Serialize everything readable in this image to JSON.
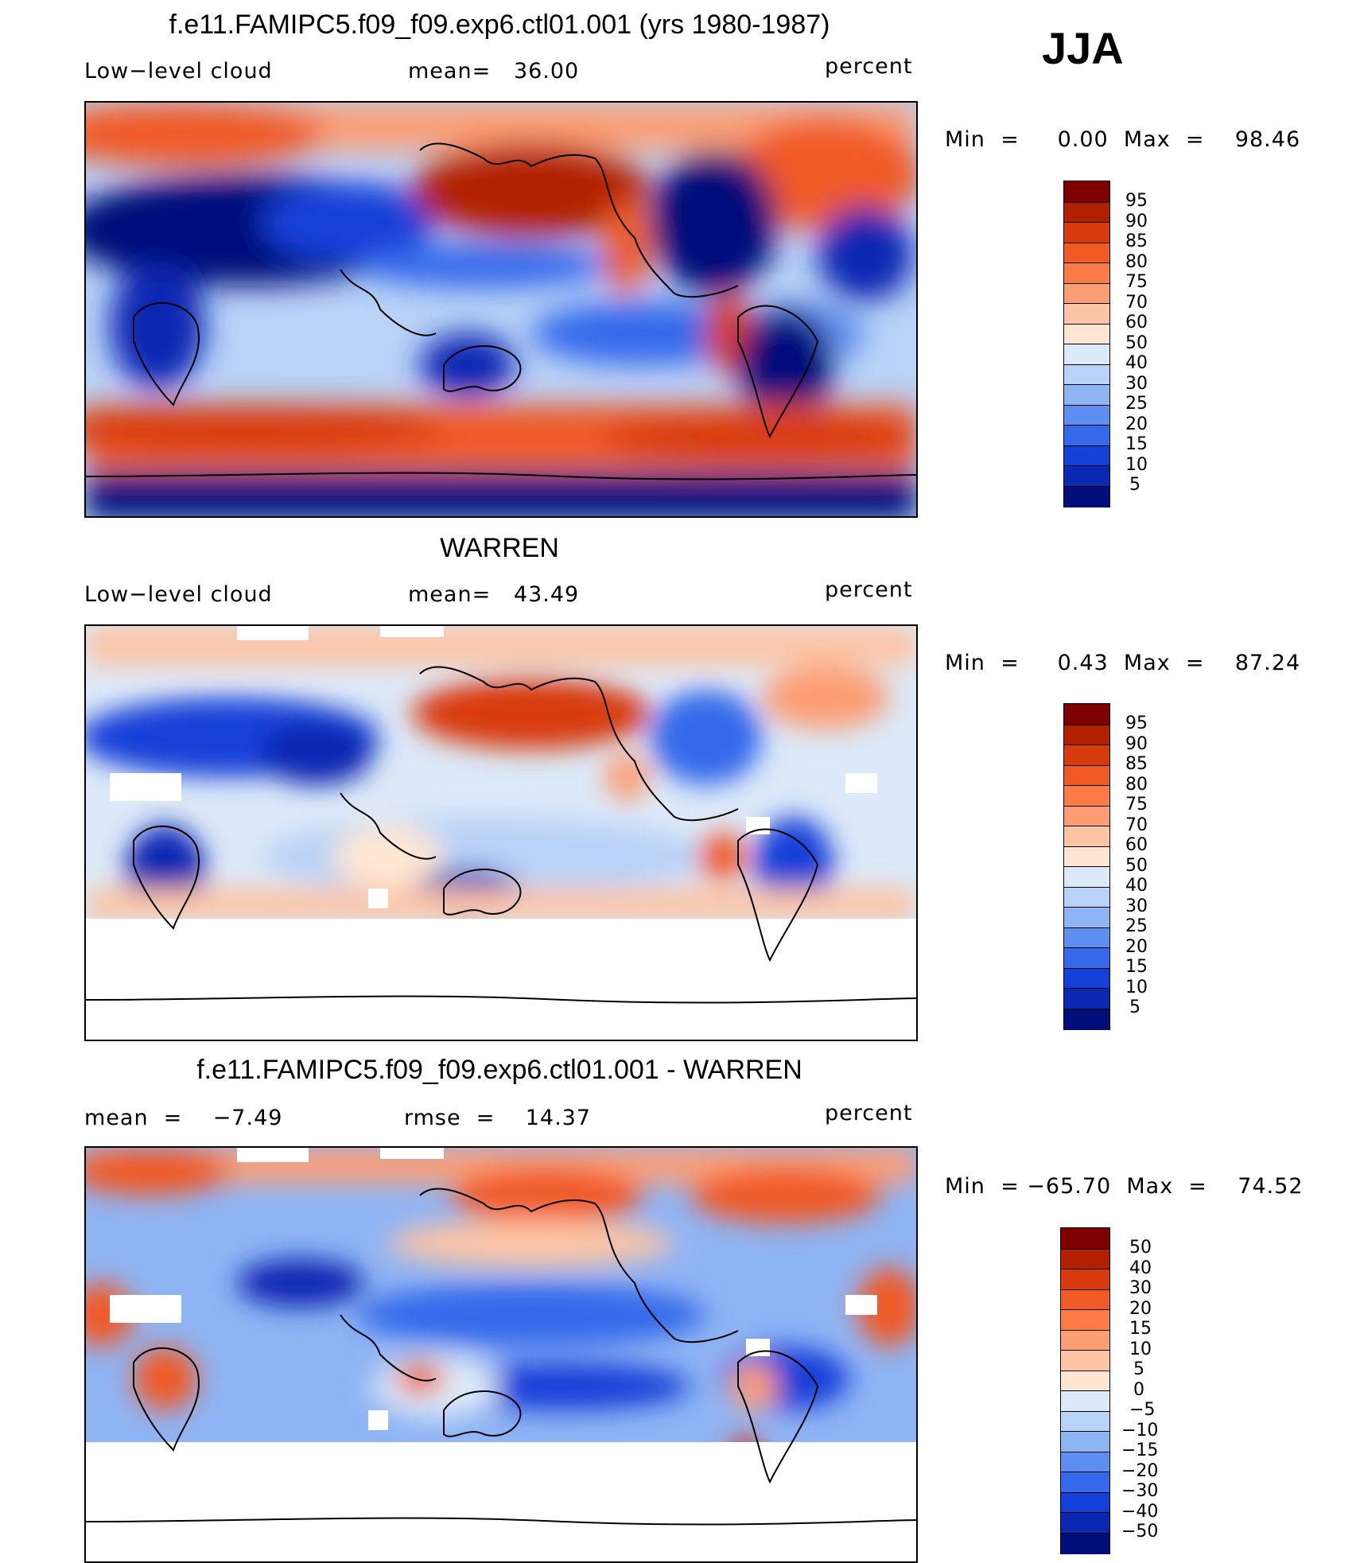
{
  "season": "JJA",
  "panels": [
    {
      "id": "model",
      "title": "f.e11.FAMIPC5.f09_f09.exp6.ctl01.001 (yrs 1980-1987)",
      "left_label": "Low−level cloud",
      "center_label": "mean=   36.00",
      "units": "percent",
      "minmax": "Min  =     0.00  Max  =    98.46",
      "colorbar_labels": [
        "95",
        "90",
        "85",
        "80",
        "75",
        "70",
        "60",
        "50",
        "40",
        "30",
        "25",
        "20",
        "15",
        "10",
        "5"
      ],
      "colorbar_colors": [
        "#7f0000",
        "#b22000",
        "#d83a0e",
        "#f05a25",
        "#fb7a45",
        "#fc9e74",
        "#fdc4a4",
        "#fee6d2",
        "#dce9f8",
        "#b9d2f7",
        "#8fb4f4",
        "#5e8ff0",
        "#3569ea",
        "#1240d8",
        "#0a28b2",
        "#000f7a"
      ]
    },
    {
      "id": "obs",
      "title": "WARREN",
      "left_label": "Low−level cloud",
      "center_label": "mean=   43.49",
      "units": "percent",
      "minmax": "Min  =     0.43  Max  =    87.24",
      "colorbar_labels": [
        "95",
        "90",
        "85",
        "80",
        "75",
        "70",
        "60",
        "50",
        "40",
        "30",
        "25",
        "20",
        "15",
        "10",
        "5"
      ],
      "colorbar_colors": [
        "#7f0000",
        "#b22000",
        "#d83a0e",
        "#f05a25",
        "#fb7a45",
        "#fc9e74",
        "#fdc4a4",
        "#fee6d2",
        "#dce9f8",
        "#b9d2f7",
        "#8fb4f4",
        "#5e8ff0",
        "#3569ea",
        "#1240d8",
        "#0a28b2",
        "#000f7a"
      ]
    },
    {
      "id": "diff",
      "title": "f.e11.FAMIPC5.f09_f09.exp6.ctl01.001 - WARREN",
      "left_label": "mean  =    −7.49",
      "center_label": "rmse  =    14.37",
      "units": "percent",
      "minmax": "Min  = −65.70  Max  =    74.52",
      "colorbar_labels": [
        "50",
        "40",
        "30",
        "20",
        "15",
        "10",
        "5",
        "0",
        "−5",
        "−10",
        "−15",
        "−20",
        "−30",
        "−40",
        "−50"
      ],
      "colorbar_colors": [
        "#7f0000",
        "#b22000",
        "#d83a0e",
        "#f05a25",
        "#fb7a45",
        "#fc9e74",
        "#fdc4a4",
        "#fee6d2",
        "#dce9f8",
        "#b9d2f7",
        "#8fb4f4",
        "#5e8ff0",
        "#3569ea",
        "#1240d8",
        "#0a28b2",
        "#000f7a"
      ]
    }
  ]
}
